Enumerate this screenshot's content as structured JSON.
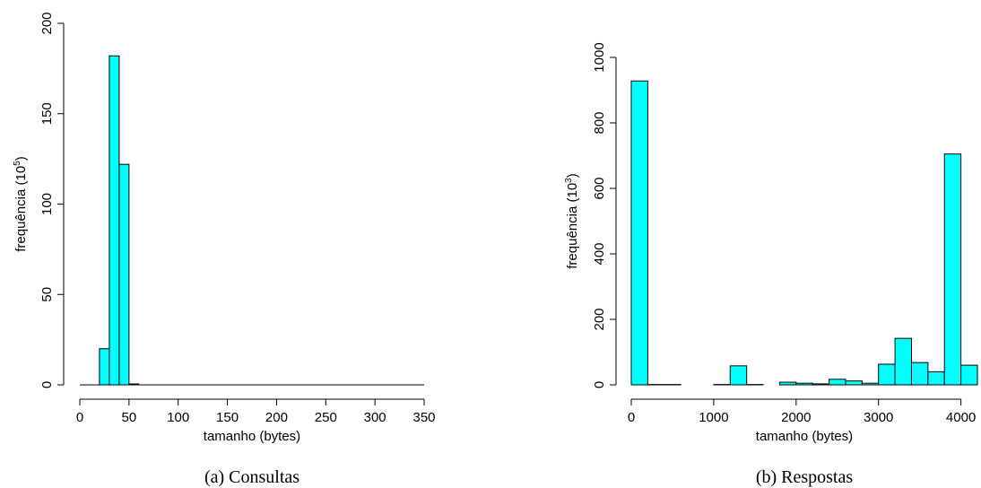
{
  "colors": {
    "bar_fill": "#00ffff",
    "bar_stroke": "#000000"
  },
  "chart_data": [
    {
      "type": "bar",
      "caption": "(a)  Consultas",
      "xlabel": "tamanho (bytes)",
      "ylabel_base": "frequência (10",
      "ylabel_exp": "5",
      "ylabel_end": ")",
      "xlim": [
        0,
        350
      ],
      "ylim": [
        0,
        200
      ],
      "xticks": [
        0,
        50,
        100,
        150,
        200,
        250,
        300,
        350
      ],
      "yticks": [
        0,
        50,
        100,
        150,
        200
      ],
      "bin_width": 10,
      "bins": [
        {
          "x0": 20,
          "x1": 30,
          "value": 20
        },
        {
          "x0": 30,
          "x1": 40,
          "value": 182
        },
        {
          "x0": 40,
          "x1": 50,
          "value": 122
        },
        {
          "x0": 50,
          "x1": 60,
          "value": 0.5
        }
      ],
      "zero_baseline_x": [
        0,
        350
      ]
    },
    {
      "type": "bar",
      "caption": "(b)  Respostas",
      "xlabel": "tamanho (bytes)",
      "ylabel_base": "frequência (10",
      "ylabel_exp": "3",
      "ylabel_end": ")",
      "xlim": [
        0,
        4200
      ],
      "ylim": [
        0,
        1000
      ],
      "xticks": [
        0,
        1000,
        2000,
        3000,
        4000
      ],
      "yticks": [
        0,
        200,
        400,
        600,
        800,
        1000
      ],
      "bin_width": 200,
      "bins": [
        {
          "x0": 0,
          "x1": 200,
          "value": 928
        },
        {
          "x0": 200,
          "x1": 400,
          "value": 1
        },
        {
          "x0": 400,
          "x1": 600,
          "value": 1
        },
        {
          "x0": 600,
          "x1": 800,
          "value": 0
        },
        {
          "x0": 800,
          "x1": 1000,
          "value": 0
        },
        {
          "x0": 1000,
          "x1": 1200,
          "value": 1
        },
        {
          "x0": 1200,
          "x1": 1400,
          "value": 58
        },
        {
          "x0": 1400,
          "x1": 1600,
          "value": 1
        },
        {
          "x0": 1600,
          "x1": 1800,
          "value": 0
        },
        {
          "x0": 1800,
          "x1": 2000,
          "value": 8
        },
        {
          "x0": 2000,
          "x1": 2200,
          "value": 5
        },
        {
          "x0": 2200,
          "x1": 2400,
          "value": 3
        },
        {
          "x0": 2400,
          "x1": 2600,
          "value": 17
        },
        {
          "x0": 2600,
          "x1": 2800,
          "value": 12
        },
        {
          "x0": 2800,
          "x1": 3000,
          "value": 5
        },
        {
          "x0": 3000,
          "x1": 3200,
          "value": 63
        },
        {
          "x0": 3200,
          "x1": 3400,
          "value": 142
        },
        {
          "x0": 3400,
          "x1": 3600,
          "value": 68
        },
        {
          "x0": 3600,
          "x1": 3800,
          "value": 40
        },
        {
          "x0": 3800,
          "x1": 4000,
          "value": 705
        },
        {
          "x0": 4000,
          "x1": 4200,
          "value": 60
        }
      ]
    }
  ]
}
